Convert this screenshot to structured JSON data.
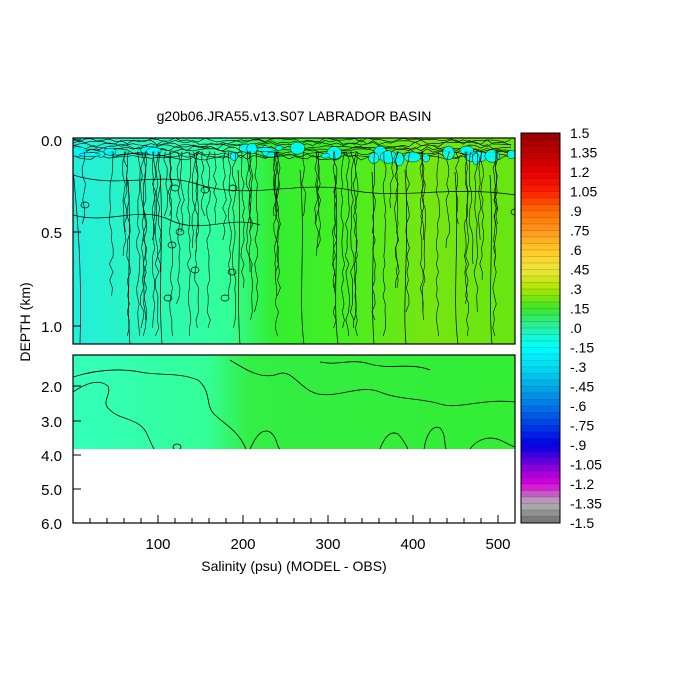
{
  "chart_data": {
    "type": "heatmap",
    "title": "g20b06.JRA55.v13.S07 LABRADOR BASIN",
    "xlabel": "Salinity (psu) (MODEL - OBS)",
    "ylabel": "DEPTH (km)",
    "x_range": [
      0,
      520
    ],
    "x_ticks": [
      "100",
      "200",
      "300",
      "400",
      "500"
    ],
    "x_tick_values": [
      100,
      200,
      300,
      400,
      500
    ],
    "upper_panel": {
      "y_range": [
        0.0,
        1.15
      ],
      "y_ticks": [
        "0.0",
        "0.5",
        "1.0"
      ],
      "y_tick_values": [
        0.0,
        0.5,
        1.0
      ]
    },
    "lower_panel": {
      "y_range": [
        1.15,
        6.0
      ],
      "data_bottom": 3.8,
      "y_ticks": [
        "2.0",
        "3.0",
        "4.0",
        "5.0",
        "6.0"
      ],
      "y_tick_values": [
        2.0,
        3.0,
        4.0,
        5.0,
        6.0
      ]
    },
    "colorbar": {
      "labels": [
        "1.5",
        "1.35",
        "1.2",
        "1.05",
        ".9",
        ".75",
        ".6",
        ".45",
        ".3",
        ".15",
        ".0",
        "-.15",
        "-.3",
        "-.45",
        "-.6",
        "-.75",
        "-.9",
        "-1.05",
        "-1.2",
        "-1.35",
        "-1.5"
      ],
      "min": -1.5,
      "max": 1.5
    },
    "colors": {
      "near_zero_positive": "#33ee33",
      "small_positive": "#88e000",
      "near_zero_negative": "#33ffbb",
      "small_negative": "#22eedd",
      "surface_negative": "#00ffff"
    }
  }
}
